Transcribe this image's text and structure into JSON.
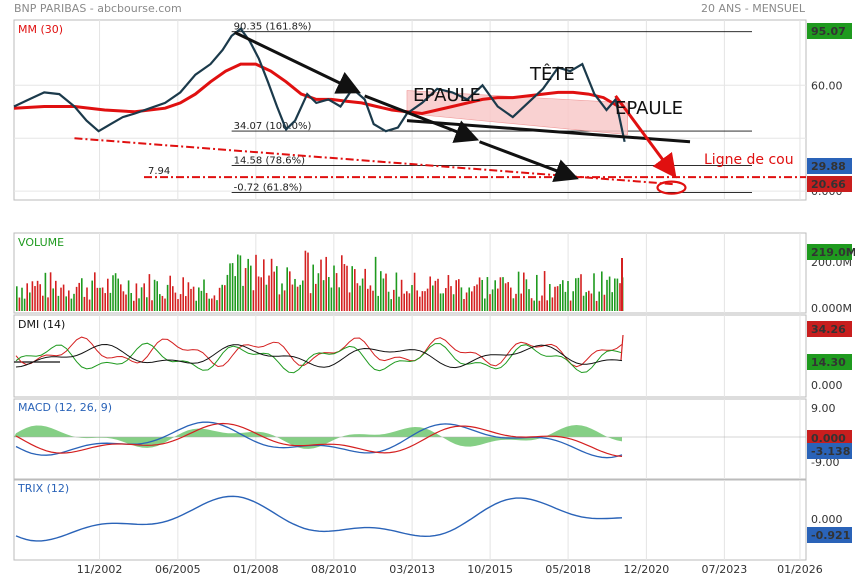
{
  "header": {
    "left": "BNP PARIBAS - abcbourse.com",
    "right": "20 ANS - MENSUEL"
  },
  "colors": {
    "price": "#1b3a4b",
    "mm": "#e01010",
    "green_badge": "#1f9a1f",
    "blue_badge": "#2a63b8",
    "red_badge": "#c81e1e"
  },
  "chart_data": [
    {
      "type": "line",
      "panel": "price",
      "label": "MM (30)",
      "x_ticks": [
        "11/2002",
        "06/2005",
        "01/2008",
        "08/2010",
        "03/2013",
        "10/2015",
        "05/2018",
        "12/2020",
        "07/2023",
        "01/2026"
      ],
      "y_ticks": [
        "60.00",
        "0.000"
      ],
      "ylim": [
        -5,
        97
      ],
      "last_price_badge": "95.07",
      "badges": [
        "29.88",
        "20.66"
      ],
      "series": [
        {
          "name": "Cours",
          "x": [
            2000.0,
            2000.5,
            2001.0,
            2001.5,
            2002.0,
            2002.4,
            2002.8,
            2003.2,
            2003.6,
            2004.0,
            2004.5,
            2005.0,
            2005.5,
            2006.0,
            2006.5,
            2006.9,
            2007.2,
            2007.5,
            2007.8,
            2008.1,
            2008.4,
            2008.7,
            2009.0,
            2009.3,
            2009.7,
            2010.0,
            2010.4,
            2010.8,
            2011.2,
            2011.6,
            2011.9,
            2012.3,
            2012.7,
            2013.0,
            2013.5,
            2014.0,
            2014.5,
            2015.0,
            2015.5,
            2016.0,
            2016.5,
            2017.0,
            2017.5,
            2018.0,
            2018.4,
            2018.8,
            2019.2,
            2019.6,
            2019.9,
            2020.2
          ],
          "values": [
            48,
            52,
            56,
            55,
            48,
            40,
            34,
            38,
            42,
            44,
            47,
            50,
            56,
            66,
            72,
            80,
            88,
            92,
            85,
            75,
            62,
            48,
            35,
            40,
            55,
            50,
            52,
            48,
            58,
            52,
            38,
            34,
            36,
            44,
            50,
            58,
            56,
            52,
            60,
            48,
            42,
            50,
            58,
            70,
            68,
            72,
            55,
            46,
            52,
            28
          ]
        },
        {
          "name": "MM (30)",
          "x": [
            2000.0,
            2001.0,
            2002.0,
            2003.0,
            2004.0,
            2005.0,
            2005.5,
            2006.0,
            2006.5,
            2007.0,
            2007.5,
            2008.0,
            2008.5,
            2009.0,
            2009.5,
            2010.0,
            2010.5,
            2011.0,
            2011.5,
            2012.0,
            2012.5,
            2013.0,
            2013.5,
            2014.0,
            2014.5,
            2015.0,
            2015.5,
            2016.0,
            2016.5,
            2017.0,
            2017.5,
            2018.0,
            2018.5,
            2019.0,
            2019.5,
            2020.0
          ],
          "values": [
            47,
            48,
            48,
            46,
            45,
            47,
            50,
            55,
            62,
            68,
            72,
            72,
            68,
            62,
            55,
            52,
            52,
            51,
            50,
            48,
            46,
            45,
            44,
            46,
            48,
            50,
            52,
            53,
            53,
            54,
            55,
            56,
            56,
            55,
            53,
            48
          ]
        }
      ],
      "fibonacci": [
        {
          "label": "90.35  (161.8%)",
          "value": 90.35
        },
        {
          "label": "34.07  (100.0%)",
          "value": 34.07
        },
        {
          "label": "14.58  (78.6%)",
          "value": 14.58
        },
        {
          "label": "-0.72  (61.8%)",
          "value": -0.72
        }
      ],
      "support_label": "7.94",
      "support_value": 7.94,
      "annotations": {
        "epaule_left": "EPAULE",
        "tete": "TÊTE",
        "epaule_right": "EPAULE",
        "neckline": "Ligne de cou"
      }
    },
    {
      "type": "bar",
      "panel": "volume",
      "label": "VOLUME",
      "y_ticks": [
        "200.0M",
        "0.000M"
      ],
      "badge": "219.0M"
    },
    {
      "type": "line",
      "panel": "dmi",
      "label": "DMI (14)",
      "y_ticks": [
        "0.000"
      ],
      "badges": [
        "34.26",
        "14.30"
      ]
    },
    {
      "type": "line",
      "panel": "macd",
      "label": "MACD (12, 26, 9)",
      "y_ticks": [
        "9.00",
        "0.000",
        "-9.00"
      ],
      "badges": [
        "0.000",
        "-3.138"
      ]
    },
    {
      "type": "line",
      "panel": "trix",
      "label": "TRIX (12)",
      "y_ticks": [
        "0.000"
      ],
      "badge": "-0.921"
    }
  ]
}
